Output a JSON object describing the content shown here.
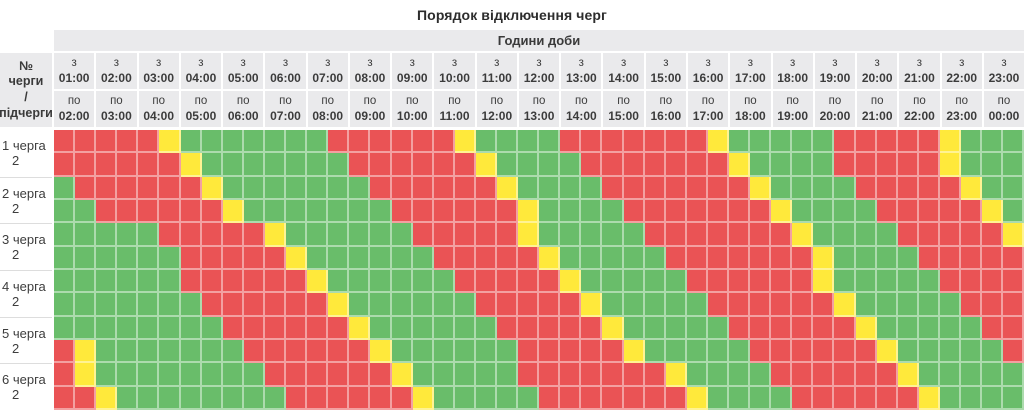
{
  "title": "Порядок відключення черг",
  "chart_data": {
    "type": "heatmap",
    "title": "Порядок відключення черг",
    "columns_title": "Години доби",
    "row_header": [
      "№ черги",
      "/",
      "підчерги"
    ],
    "from_prefix": "з",
    "to_prefix": "по",
    "cells_per_hour": 2,
    "hours": [
      [
        "01:00",
        "02:00"
      ],
      [
        "02:00",
        "03:00"
      ],
      [
        "03:00",
        "04:00"
      ],
      [
        "04:00",
        "05:00"
      ],
      [
        "05:00",
        "06:00"
      ],
      [
        "06:00",
        "07:00"
      ],
      [
        "07:00",
        "08:00"
      ],
      [
        "08:00",
        "09:00"
      ],
      [
        "09:00",
        "10:00"
      ],
      [
        "10:00",
        "11:00"
      ],
      [
        "11:00",
        "12:00"
      ],
      [
        "12:00",
        "13:00"
      ],
      [
        "13:00",
        "14:00"
      ],
      [
        "14:00",
        "15:00"
      ],
      [
        "15:00",
        "16:00"
      ],
      [
        "16:00",
        "17:00"
      ],
      [
        "17:00",
        "18:00"
      ],
      [
        "18:00",
        "19:00"
      ],
      [
        "19:00",
        "20:00"
      ],
      [
        "20:00",
        "21:00"
      ],
      [
        "21:00",
        "22:00"
      ],
      [
        "22:00",
        "23:00"
      ],
      [
        "23:00",
        "00:00"
      ]
    ],
    "cell_states": {
      "R": "#ea5355",
      "G": "#69bd6a",
      "Y": "#ffe93b"
    },
    "queues": [
      {
        "label": "1 черга",
        "sublabel": "2",
        "rows": [
          "RRRRRYGGGGGGGRRRRRRYGGGGRRRRRRRYGGGGGRRRRRYGGG",
          "RRRRRRYGGGGGGGRRRRRRYGGGGRRRRRRRYGGGGRRRRRYGGG"
        ]
      },
      {
        "label": "2 черга",
        "sublabel": "2",
        "rows": [
          "GRRRRRRYGGGGGGGRRRRRRYGGGGRRRRRRRYGGGGRRRRRYGG",
          "GGRRRRRRYGGGGGGGRRRRRRYGGGGRRRRRRRYGGGGRRRRRYG"
        ]
      },
      {
        "label": "3 черга",
        "sublabel": "2",
        "rows": [
          "GGGGGRRRRRYGGGGGGRRRRRYGGGGGRRRRRRRYGGGGRRRRRY",
          "GGGGGGRRRRRYGGGGGGRRRRRYGGGGGRRRRRRRYGGGGRRRRR"
        ]
      },
      {
        "label": "4 черга",
        "sublabel": "2",
        "rows": [
          "GGGGGGRRRRRRYGGGGGGRRRRRYGGGGGRRRRRRYGGGGGRRRR",
          "GGGGGGGRRRRRRYGGGGGGRRRRRYGGGGGRRRRRRYGGGGGRRR"
        ]
      },
      {
        "label": "5 черга",
        "sublabel": "2",
        "rows": [
          "GGGGGGGGRRRRRRYGGGGGGRRRRRYGGGGGRRRRRRYGGGGGRR",
          "RYGGGGGGGRRRRRRYGGGGGGRRRRRYGGGGGRRRRRRYGGGGGR"
        ]
      },
      {
        "label": "6 черга",
        "sublabel": "2",
        "rows": [
          "RYGGGGGGGGRRRRRRYGGGGGRRRRRRRYGGGGRRRRRRYGGGGG",
          "RRYGGGGGGGGRRRRRRYGGGGGRRRRRRRYGGGGRRRRRRYGGGG"
        ]
      }
    ]
  }
}
